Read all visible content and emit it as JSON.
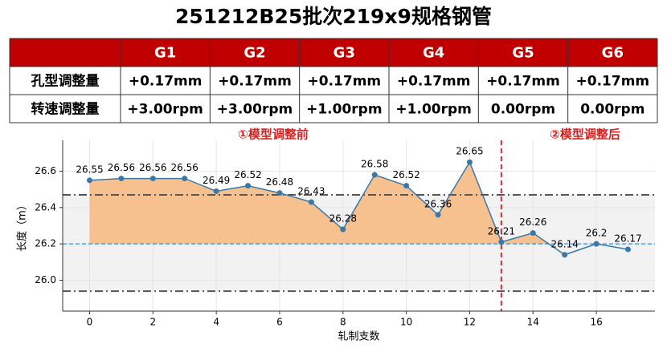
{
  "title": "251212B25批次219x9规格钢管",
  "table": {
    "columns": [
      "G1",
      "G2",
      "G3",
      "G4",
      "G5",
      "G6"
    ],
    "rows": [
      {
        "label": "孔型调整量",
        "cells": [
          "+0.17mm",
          "+0.17mm",
          "+0.17mm",
          "+0.17mm",
          "+0.17mm",
          "+0.17mm"
        ]
      },
      {
        "label": "转速调整量",
        "cells": [
          "+3.00rpm",
          "+3.00rpm",
          "+1.00rpm",
          "+1.00rpm",
          "0.00rpm",
          "0.00rpm"
        ]
      }
    ]
  },
  "annotations": [
    "①模型调整前",
    "②模型调整后"
  ],
  "chart_data": {
    "type": "line",
    "x_label": "轧制支数",
    "y_label": "长度（m）",
    "x": [
      0,
      1,
      2,
      3,
      4,
      5,
      6,
      7,
      8,
      9,
      10,
      11,
      12,
      13,
      14,
      15,
      16,
      17
    ],
    "values": [
      26.55,
      26.56,
      26.56,
      26.56,
      26.49,
      26.52,
      26.48,
      26.43,
      26.28,
      26.58,
      26.52,
      26.36,
      26.65,
      26.21,
      26.26,
      26.14,
      26.2,
      26.17
    ],
    "color": "#3a78a8",
    "fill_color": "#f7c08f",
    "xlim": [
      -0.85,
      17.85
    ],
    "ylim": [
      25.83,
      26.77
    ],
    "xticks": [
      0,
      2,
      4,
      6,
      8,
      10,
      12,
      14,
      16
    ],
    "yticks": [
      {
        "value": 26,
        "label": "26.0"
      },
      26.2,
      26.4,
      26.6
    ],
    "target": 26.2,
    "upper_limit": 26.47,
    "lower_limit": 25.94,
    "split_x": 13,
    "grid": true
  }
}
